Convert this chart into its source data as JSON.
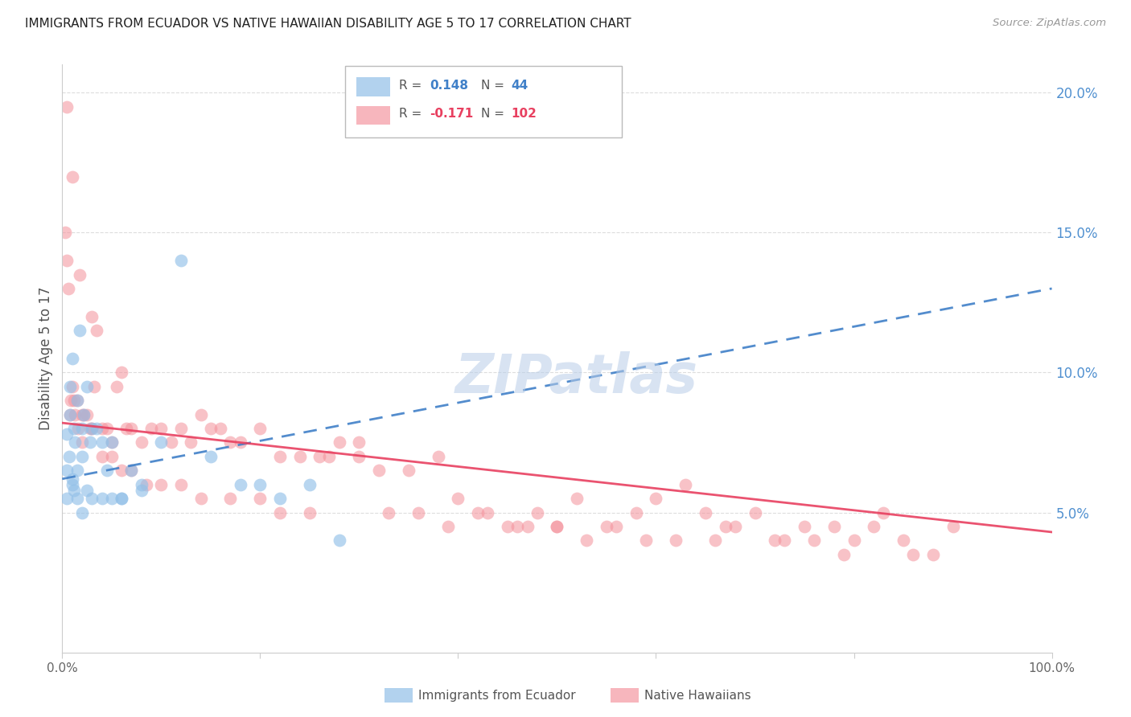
{
  "title": "IMMIGRANTS FROM ECUADOR VS NATIVE HAWAIIAN DISABILITY AGE 5 TO 17 CORRELATION CHART",
  "source": "Source: ZipAtlas.com",
  "ylabel": "Disability Age 5 to 17",
  "blue_color": "#92C0E8",
  "pink_color": "#F4909A",
  "blue_line_color": "#4080C8",
  "pink_line_color": "#E84060",
  "background_color": "#FFFFFF",
  "grid_color": "#DDDDDD",
  "title_color": "#333333",
  "right_axis_color": "#5090D0",
  "watermark": "ZIPatlas",
  "legend_r1": "R = ",
  "legend_v1": "0.148",
  "legend_n1": "N = ",
  "legend_count1": "44",
  "legend_r2": "R = ",
  "legend_v2": "-0.171",
  "legend_n2": "N = ",
  "legend_count2": "102",
  "blue_scatter_x": [
    0.5,
    0.5,
    0.5,
    0.7,
    0.8,
    0.8,
    1.0,
    1.0,
    1.2,
    1.3,
    1.5,
    1.5,
    1.8,
    2.0,
    2.0,
    2.2,
    2.5,
    2.8,
    3.0,
    3.5,
    4.0,
    4.5,
    5.0,
    6.0,
    7.0,
    8.0,
    10.0,
    12.0,
    15.0,
    18.0,
    20.0,
    22.0,
    25.0,
    28.0,
    1.0,
    1.2,
    1.5,
    2.0,
    2.5,
    3.0,
    4.0,
    5.0,
    6.0,
    8.0
  ],
  "blue_scatter_y": [
    6.5,
    7.8,
    5.5,
    7.0,
    8.5,
    9.5,
    10.5,
    6.0,
    8.0,
    7.5,
    9.0,
    6.5,
    11.5,
    8.0,
    7.0,
    8.5,
    9.5,
    7.5,
    8.0,
    8.0,
    7.5,
    6.5,
    7.5,
    5.5,
    6.5,
    6.0,
    7.5,
    14.0,
    7.0,
    6.0,
    6.0,
    5.5,
    6.0,
    4.0,
    6.2,
    5.8,
    5.5,
    5.0,
    5.8,
    5.5,
    5.5,
    5.5,
    5.5,
    5.8
  ],
  "pink_scatter_x": [
    0.5,
    0.5,
    0.8,
    1.0,
    1.0,
    1.2,
    1.5,
    1.8,
    2.0,
    2.2,
    2.5,
    3.0,
    3.0,
    3.5,
    4.0,
    4.5,
    5.0,
    5.5,
    6.0,
    6.5,
    7.0,
    8.0,
    9.0,
    10.0,
    11.0,
    12.0,
    13.0,
    14.0,
    15.0,
    16.0,
    17.0,
    18.0,
    20.0,
    22.0,
    24.0,
    26.0,
    28.0,
    30.0,
    32.0,
    35.0,
    38.0,
    40.0,
    43.0,
    46.0,
    48.0,
    50.0,
    52.0,
    55.0,
    58.0,
    60.0,
    63.0,
    65.0,
    67.0,
    70.0,
    73.0,
    75.0,
    78.0,
    80.0,
    83.0,
    85.0,
    88.0,
    90.0,
    0.3,
    0.6,
    0.9,
    1.3,
    1.6,
    2.0,
    2.8,
    3.2,
    4.0,
    5.0,
    6.0,
    7.0,
    8.5,
    10.0,
    12.0,
    14.0,
    17.0,
    20.0,
    22.0,
    25.0,
    27.0,
    30.0,
    33.0,
    36.0,
    39.0,
    42.0,
    45.0,
    47.0,
    50.0,
    53.0,
    56.0,
    59.0,
    62.0,
    66.0,
    68.0,
    72.0,
    76.0,
    79.0,
    82.0,
    86.0
  ],
  "pink_scatter_y": [
    19.5,
    14.0,
    8.5,
    17.0,
    9.5,
    9.0,
    9.0,
    13.5,
    8.5,
    8.5,
    8.5,
    12.0,
    8.0,
    11.5,
    8.0,
    8.0,
    7.5,
    9.5,
    10.0,
    8.0,
    8.0,
    7.5,
    8.0,
    8.0,
    7.5,
    8.0,
    7.5,
    8.5,
    8.0,
    8.0,
    7.5,
    7.5,
    8.0,
    7.0,
    7.0,
    7.0,
    7.5,
    7.0,
    6.5,
    6.5,
    7.0,
    5.5,
    5.0,
    4.5,
    5.0,
    4.5,
    5.5,
    4.5,
    5.0,
    5.5,
    6.0,
    5.0,
    4.5,
    5.0,
    4.0,
    4.5,
    4.5,
    4.0,
    5.0,
    4.0,
    3.5,
    4.5,
    15.0,
    13.0,
    9.0,
    8.5,
    8.0,
    7.5,
    8.0,
    9.5,
    7.0,
    7.0,
    6.5,
    6.5,
    6.0,
    6.0,
    6.0,
    5.5,
    5.5,
    5.5,
    5.0,
    5.0,
    7.0,
    7.5,
    5.0,
    5.0,
    4.5,
    5.0,
    4.5,
    4.5,
    4.5,
    4.0,
    4.5,
    4.0,
    4.0,
    4.0,
    4.5,
    4.0,
    4.0,
    3.5,
    4.5,
    3.5
  ]
}
